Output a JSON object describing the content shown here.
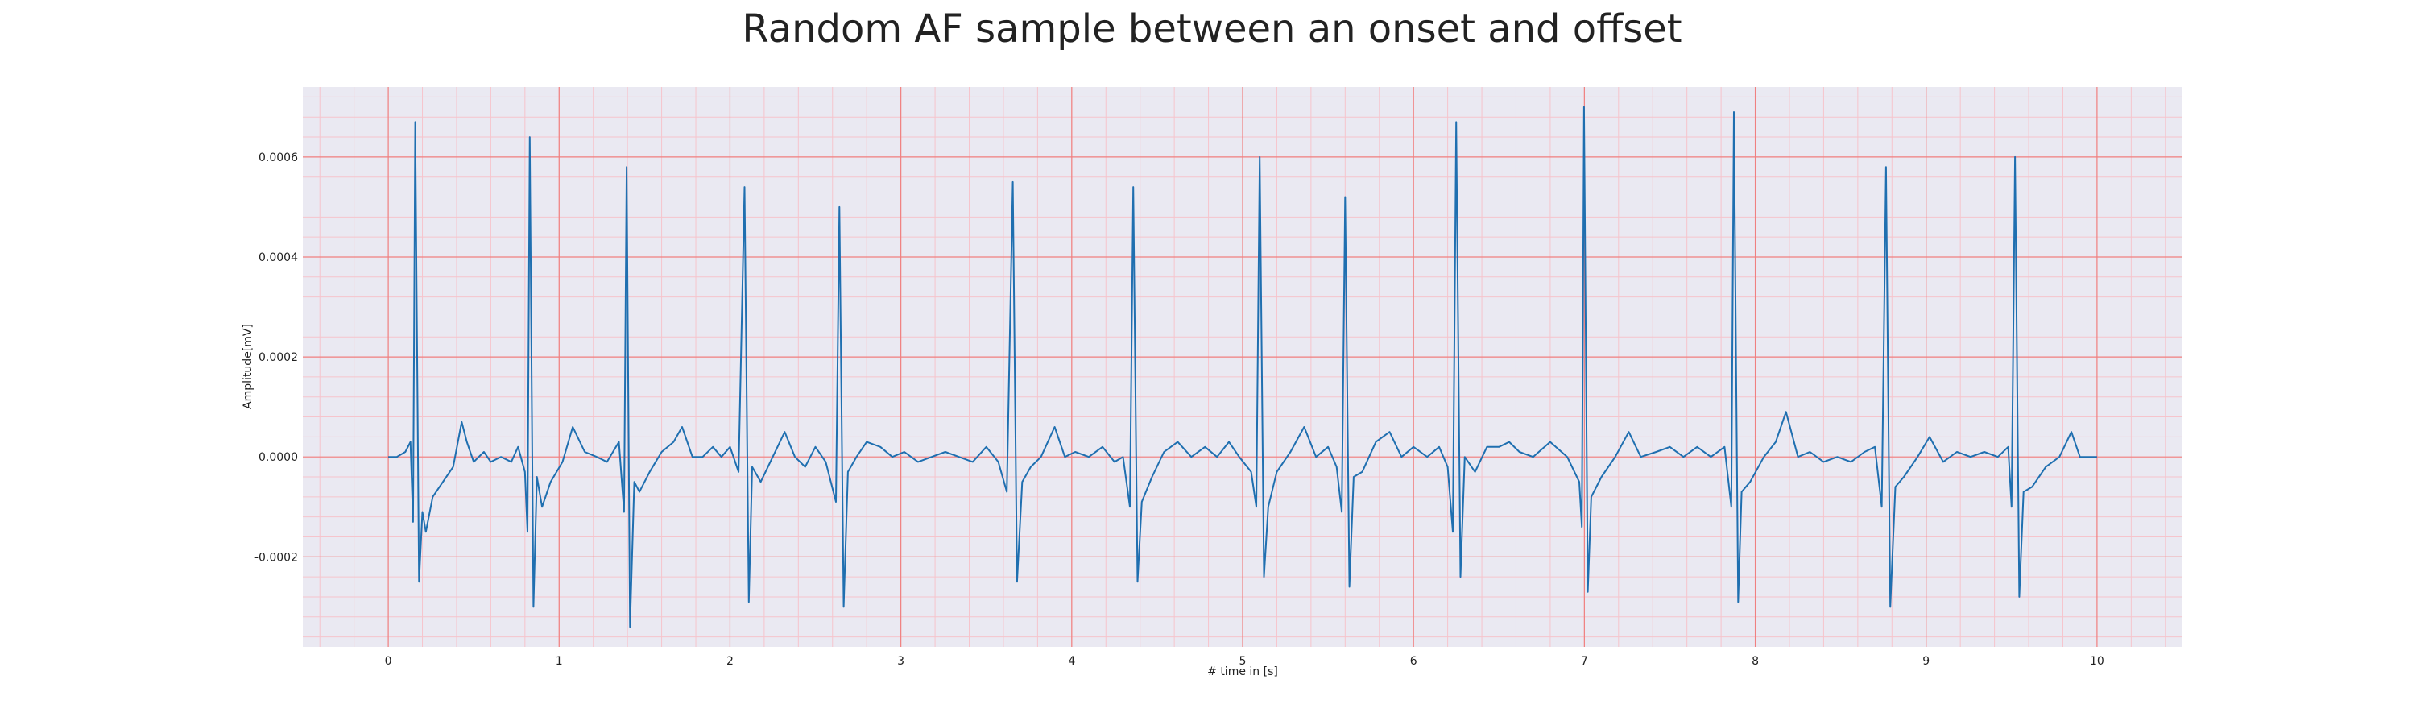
{
  "chart_data": {
    "type": "line",
    "title": "Random AF sample between an onset and offset",
    "xlabel": "# time in [s]",
    "ylabel": "Amplitude[mV]",
    "xlim": [
      -0.5,
      10.5
    ],
    "ylim": [
      -0.00038,
      0.00074
    ],
    "x_ticks": [
      0,
      1,
      2,
      3,
      4,
      5,
      6,
      7,
      8,
      9,
      10
    ],
    "y_ticks": [
      -0.0002,
      0.0,
      0.0002,
      0.0004,
      0.0006
    ],
    "x_tick_labels": [
      "0",
      "1",
      "2",
      "3",
      "4",
      "5",
      "6",
      "7",
      "8",
      "9",
      "10"
    ],
    "y_tick_labels": [
      "-0.0002",
      "0.0000",
      "0.0002",
      "0.0004",
      "0.0006"
    ],
    "grid": true,
    "minor_grid": true,
    "colors": {
      "line": "#1f6fb0",
      "background": "#eae9f2",
      "major_grid": "#f08080",
      "minor_grid": "#f6c4cc"
    },
    "series": [
      {
        "values": [
          [
            0.0,
            0.0
          ],
          [
            0.05,
            0.0
          ],
          [
            0.1,
            1e-05
          ],
          [
            0.13,
            3e-05
          ],
          [
            0.145,
            -0.00013
          ],
          [
            0.158,
            0.00067
          ],
          [
            0.18,
            -0.00025
          ],
          [
            0.2,
            -0.00011
          ],
          [
            0.22,
            -0.00015
          ],
          [
            0.26,
            -8e-05
          ],
          [
            0.32,
            -5e-05
          ],
          [
            0.38,
            -2e-05
          ],
          [
            0.43,
            7e-05
          ],
          [
            0.46,
            3e-05
          ],
          [
            0.5,
            -1e-05
          ],
          [
            0.56,
            1e-05
          ],
          [
            0.6,
            -1e-05
          ],
          [
            0.66,
            0.0
          ],
          [
            0.72,
            -1e-05
          ],
          [
            0.76,
            2e-05
          ],
          [
            0.8,
            -3e-05
          ],
          [
            0.815,
            -0.00015
          ],
          [
            0.828,
            0.00064
          ],
          [
            0.85,
            -0.0003
          ],
          [
            0.87,
            -4e-05
          ],
          [
            0.9,
            -0.0001
          ],
          [
            0.95,
            -5e-05
          ],
          [
            1.02,
            -1e-05
          ],
          [
            1.08,
            6e-05
          ],
          [
            1.15,
            1e-05
          ],
          [
            1.22,
            0.0
          ],
          [
            1.28,
            -1e-05
          ],
          [
            1.35,
            3e-05
          ],
          [
            1.38,
            -0.00011
          ],
          [
            1.395,
            0.00058
          ],
          [
            1.415,
            -0.00034
          ],
          [
            1.44,
            -5e-05
          ],
          [
            1.47,
            -7e-05
          ],
          [
            1.53,
            -3e-05
          ],
          [
            1.6,
            1e-05
          ],
          [
            1.67,
            3e-05
          ],
          [
            1.72,
            6e-05
          ],
          [
            1.78,
            0.0
          ],
          [
            1.84,
            0.0
          ],
          [
            1.9,
            2e-05
          ],
          [
            1.95,
            0.0
          ],
          [
            2.0,
            2e-05
          ],
          [
            2.05,
            -3e-05
          ],
          [
            2.085,
            0.00054
          ],
          [
            2.11,
            -0.00029
          ],
          [
            2.13,
            -2e-05
          ],
          [
            2.18,
            -5e-05
          ],
          [
            2.25,
            0.0
          ],
          [
            2.32,
            5e-05
          ],
          [
            2.38,
            0.0
          ],
          [
            2.44,
            -2e-05
          ],
          [
            2.5,
            2e-05
          ],
          [
            2.56,
            -1e-05
          ],
          [
            2.62,
            -9e-05
          ],
          [
            2.64,
            0.0005
          ],
          [
            2.665,
            -0.0003
          ],
          [
            2.69,
            -3e-05
          ],
          [
            2.74,
            0.0
          ],
          [
            2.8,
            3e-05
          ],
          [
            2.88,
            2e-05
          ],
          [
            2.95,
            0.0
          ],
          [
            3.02,
            1e-05
          ],
          [
            3.1,
            -1e-05
          ],
          [
            3.18,
            0.0
          ],
          [
            3.26,
            1e-05
          ],
          [
            3.34,
            0.0
          ],
          [
            3.42,
            -1e-05
          ],
          [
            3.5,
            2e-05
          ],
          [
            3.57,
            -1e-05
          ],
          [
            3.62,
            -7e-05
          ],
          [
            3.655,
            0.00055
          ],
          [
            3.68,
            -0.00025
          ],
          [
            3.71,
            -5e-05
          ],
          [
            3.76,
            -2e-05
          ],
          [
            3.82,
            0.0
          ],
          [
            3.9,
            6e-05
          ],
          [
            3.96,
            0.0
          ],
          [
            4.02,
            1e-05
          ],
          [
            4.1,
            0.0
          ],
          [
            4.18,
            2e-05
          ],
          [
            4.25,
            -1e-05
          ],
          [
            4.3,
            0.0
          ],
          [
            4.34,
            -0.0001
          ],
          [
            4.36,
            0.00054
          ],
          [
            4.385,
            -0.00025
          ],
          [
            4.41,
            -9e-05
          ],
          [
            4.47,
            -4e-05
          ],
          [
            4.54,
            1e-05
          ],
          [
            4.62,
            3e-05
          ],
          [
            4.7,
            0.0
          ],
          [
            4.78,
            2e-05
          ],
          [
            4.85,
            0.0
          ],
          [
            4.92,
            3e-05
          ],
          [
            4.98,
            0.0
          ],
          [
            5.05,
            -3e-05
          ],
          [
            5.08,
            -0.0001
          ],
          [
            5.1,
            0.0006
          ],
          [
            5.125,
            -0.00024
          ],
          [
            5.15,
            -0.0001
          ],
          [
            5.2,
            -3e-05
          ],
          [
            5.28,
            1e-05
          ],
          [
            5.36,
            6e-05
          ],
          [
            5.43,
            0.0
          ],
          [
            5.5,
            2e-05
          ],
          [
            5.55,
            -2e-05
          ],
          [
            5.58,
            -0.00011
          ],
          [
            5.6,
            0.00052
          ],
          [
            5.625,
            -0.00026
          ],
          [
            5.65,
            -4e-05
          ],
          [
            5.7,
            -3e-05
          ],
          [
            5.78,
            3e-05
          ],
          [
            5.86,
            5e-05
          ],
          [
            5.93,
            0.0
          ],
          [
            6.0,
            2e-05
          ],
          [
            6.08,
            0.0
          ],
          [
            6.15,
            2e-05
          ],
          [
            6.2,
            -2e-05
          ],
          [
            6.23,
            -0.00015
          ],
          [
            6.25,
            0.00067
          ],
          [
            6.275,
            -0.00024
          ],
          [
            6.3,
            0.0
          ],
          [
            6.36,
            -3e-05
          ],
          [
            6.43,
            2e-05
          ],
          [
            6.5,
            2e-05
          ],
          [
            6.56,
            3e-05
          ],
          [
            6.62,
            1e-05
          ],
          [
            6.7,
            0.0
          ],
          [
            6.8,
            3e-05
          ],
          [
            6.9,
            0.0
          ],
          [
            6.97,
            -5e-05
          ],
          [
            6.985,
            -0.00014
          ],
          [
            6.998,
            0.0007
          ],
          [
            7.02,
            -0.00027
          ],
          [
            7.04,
            -8e-05
          ],
          [
            7.1,
            -4e-05
          ],
          [
            7.18,
            0.0
          ],
          [
            7.26,
            5e-05
          ],
          [
            7.33,
            0.0
          ],
          [
            7.42,
            1e-05
          ],
          [
            7.5,
            2e-05
          ],
          [
            7.58,
            0.0
          ],
          [
            7.66,
            2e-05
          ],
          [
            7.74,
            0.0
          ],
          [
            7.82,
            2e-05
          ],
          [
            7.86,
            -0.0001
          ],
          [
            7.875,
            0.00069
          ],
          [
            7.9,
            -0.00029
          ],
          [
            7.92,
            -7e-05
          ],
          [
            7.97,
            -5e-05
          ],
          [
            8.05,
            0.0
          ],
          [
            8.12,
            3e-05
          ],
          [
            8.18,
            9e-05
          ],
          [
            8.25,
            0.0
          ],
          [
            8.32,
            1e-05
          ],
          [
            8.4,
            -1e-05
          ],
          [
            8.48,
            0.0
          ],
          [
            8.56,
            -1e-05
          ],
          [
            8.64,
            1e-05
          ],
          [
            8.7,
            2e-05
          ],
          [
            8.74,
            -0.0001
          ],
          [
            8.765,
            0.00058
          ],
          [
            8.79,
            -0.0003
          ],
          [
            8.82,
            -6e-05
          ],
          [
            8.87,
            -4e-05
          ],
          [
            8.95,
            0.0
          ],
          [
            9.02,
            4e-05
          ],
          [
            9.1,
            -1e-05
          ],
          [
            9.18,
            1e-05
          ],
          [
            9.26,
            0.0
          ],
          [
            9.34,
            1e-05
          ],
          [
            9.42,
            0.0
          ],
          [
            9.48,
            2e-05
          ],
          [
            9.5,
            -0.0001
          ],
          [
            9.52,
            0.0006
          ],
          [
            9.545,
            -0.00028
          ],
          [
            9.57,
            -7e-05
          ],
          [
            9.62,
            -6e-05
          ],
          [
            9.7,
            -2e-05
          ],
          [
            9.78,
            0.0
          ],
          [
            9.85,
            5e-05
          ],
          [
            9.9,
            0.0
          ],
          [
            9.95,
            0.0
          ],
          [
            10.0,
            0.0
          ]
        ]
      }
    ]
  }
}
